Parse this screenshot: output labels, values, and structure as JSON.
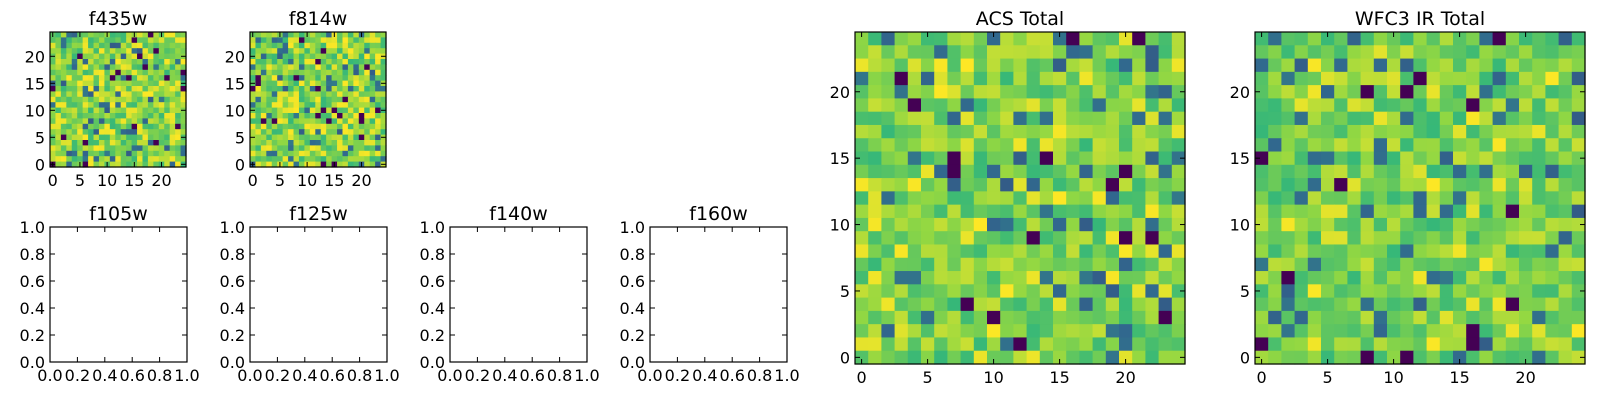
{
  "figure": {
    "colormap": [
      "#440154",
      "#31688e",
      "#35b779",
      "#90d743",
      "#fde725"
    ]
  },
  "chart_data": [
    {
      "id": "f435w",
      "type": "heatmap",
      "title": "f435w",
      "grid_size": 25,
      "xlim": [
        -0.5,
        24.5
      ],
      "ylim": [
        -0.5,
        24.5
      ],
      "x_ticks": [
        0,
        5,
        10,
        15,
        20
      ],
      "y_ticks": [
        0,
        5,
        10,
        15,
        20
      ],
      "y_tick_labels": [
        "0",
        "5",
        "10",
        "15",
        "20"
      ],
      "x_tick_labels": [
        "0",
        "5",
        "10",
        "15",
        "20"
      ],
      "seed": 11,
      "dark_fraction": 0.035,
      "bright_fraction": 0.16
    },
    {
      "id": "f814w",
      "type": "heatmap",
      "title": "f814w",
      "grid_size": 25,
      "xlim": [
        -0.5,
        24.5
      ],
      "ylim": [
        -0.5,
        24.5
      ],
      "x_ticks": [
        0,
        5,
        10,
        15,
        20
      ],
      "y_ticks": [
        0,
        5,
        10,
        15,
        20
      ],
      "y_tick_labels": [
        "0",
        "5",
        "10",
        "15",
        "20"
      ],
      "x_tick_labels": [
        "0",
        "5",
        "10",
        "15",
        "20"
      ],
      "seed": 23,
      "dark_fraction": 0.03,
      "bright_fraction": 0.18
    },
    {
      "id": "f105w",
      "type": "scatter",
      "title": "f105w",
      "xlim": [
        0,
        1
      ],
      "ylim": [
        0,
        1
      ],
      "x": [],
      "y": [],
      "x_ticks": [
        0,
        0.2,
        0.4,
        0.6,
        0.8,
        1.0
      ],
      "y_ticks": [
        0,
        0.2,
        0.4,
        0.6,
        0.8,
        1.0
      ],
      "y_tick_labels": [
        "0.0",
        "0.2",
        "0.4",
        "0.6",
        "0.8",
        "1.0"
      ],
      "x_tick_labels": [
        "0.0",
        "0.2",
        "0.4",
        "0.6",
        "0.8",
        "1.0"
      ]
    },
    {
      "id": "f125w",
      "type": "scatter",
      "title": "f125w",
      "xlim": [
        0,
        1
      ],
      "ylim": [
        0,
        1
      ],
      "x": [],
      "y": [],
      "x_ticks": [
        0,
        0.2,
        0.4,
        0.6,
        0.8,
        1.0
      ],
      "y_ticks": [
        0,
        0.2,
        0.4,
        0.6,
        0.8,
        1.0
      ],
      "y_tick_labels": [
        "0.0",
        "0.2",
        "0.4",
        "0.6",
        "0.8",
        "1.0"
      ],
      "x_tick_labels": [
        "0.0",
        "0.2",
        "0.4",
        "0.6",
        "0.8",
        "1.0"
      ]
    },
    {
      "id": "f140w",
      "type": "scatter",
      "title": "f140w",
      "xlim": [
        0,
        1
      ],
      "ylim": [
        0,
        1
      ],
      "x": [],
      "y": [],
      "x_ticks": [
        0,
        0.2,
        0.4,
        0.6,
        0.8,
        1.0
      ],
      "y_ticks": [
        0,
        0.2,
        0.4,
        0.6,
        0.8,
        1.0
      ],
      "y_tick_labels": [
        "0.0",
        "0.2",
        "0.4",
        "0.6",
        "0.8",
        "1.0"
      ],
      "x_tick_labels": [
        "0.0",
        "0.2",
        "0.4",
        "0.6",
        "0.8",
        "1.0"
      ]
    },
    {
      "id": "f160w",
      "type": "scatter",
      "title": "f160w",
      "xlim": [
        0,
        1
      ],
      "ylim": [
        0,
        1
      ],
      "x": [],
      "y": [],
      "x_ticks": [
        0,
        0.2,
        0.4,
        0.6,
        0.8,
        1.0
      ],
      "y_ticks": [
        0,
        0.2,
        0.4,
        0.6,
        0.8,
        1.0
      ],
      "y_tick_labels": [
        "0.0",
        "0.2",
        "0.4",
        "0.6",
        "0.8",
        "1.0"
      ],
      "x_tick_labels": [
        "0.0",
        "0.2",
        "0.4",
        "0.6",
        "0.8",
        "1.0"
      ]
    },
    {
      "id": "acs-total",
      "type": "heatmap",
      "title": "ACS Total",
      "grid_size": 25,
      "xlim": [
        -0.5,
        24.5
      ],
      "ylim": [
        -0.5,
        24.5
      ],
      "x_ticks": [
        0,
        5,
        10,
        15,
        20
      ],
      "y_ticks": [
        0,
        5,
        10,
        15,
        20
      ],
      "y_tick_labels": [
        "0",
        "5",
        "10",
        "15",
        "20"
      ],
      "x_tick_labels": [
        "0",
        "5",
        "10",
        "15",
        "20"
      ],
      "seed": 37,
      "dark_fraction": 0.025,
      "bright_fraction": 0.1
    },
    {
      "id": "wfc3-ir-total",
      "type": "heatmap",
      "title": "WFC3 IR Total",
      "grid_size": 25,
      "xlim": [
        -0.5,
        24.5
      ],
      "ylim": [
        -0.5,
        24.5
      ],
      "x_ticks": [
        0,
        5,
        10,
        15,
        20
      ],
      "y_ticks": [
        0,
        5,
        10,
        15,
        20
      ],
      "y_tick_labels": [
        "0",
        "5",
        "10",
        "15",
        "20"
      ],
      "x_tick_labels": [
        "0",
        "5",
        "10",
        "15",
        "20"
      ],
      "seed": 53,
      "dark_fraction": 0.03,
      "bright_fraction": 0.07
    }
  ]
}
